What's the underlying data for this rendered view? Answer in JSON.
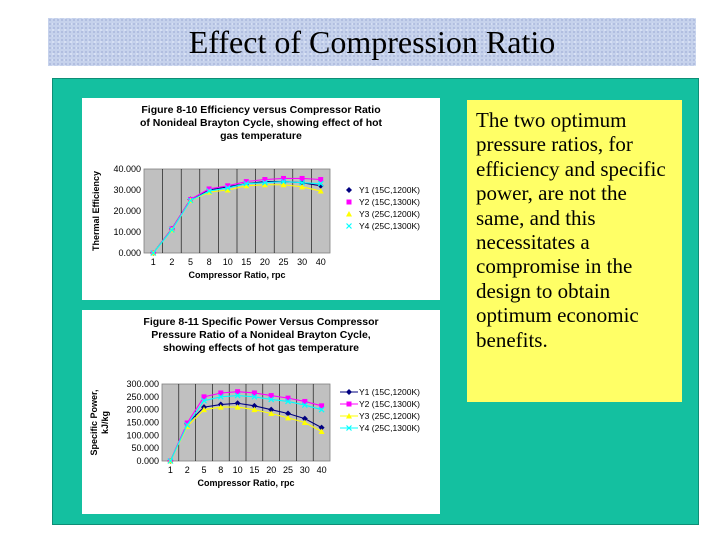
{
  "slide": {
    "title": "Effect of Compression Ratio",
    "note": "The two optimum pressure ratios, for efficiency and specific power, are not the same, and this necessitates a compromise in the design to obtain optimum economic benefits."
  },
  "colors": {
    "title_bar": "#c6d2ec",
    "panel": "#14c0a0",
    "note_box": "#ffff66",
    "plot_area": "#c0c0c0",
    "y1": "#000080",
    "y2": "#ff00ff",
    "y3": "#ffff00",
    "y4": "#00ffff"
  },
  "chart_data": [
    {
      "type": "line",
      "title_lines": [
        "Figure 8-10 Efficiency versus Compressor Ratio",
        "of Nonideal Brayton Cycle, showing effect of hot",
        "gas temperature"
      ],
      "xlabel": "Compressor Ratio, rpc",
      "ylabel": "Thermal Efficiency",
      "categories": [
        "1",
        "2",
        "5",
        "8",
        "10",
        "15",
        "20",
        "25",
        "30",
        "40"
      ],
      "yticks": [
        "40.000",
        "30.000",
        "20.000",
        "10.000",
        "0.000"
      ],
      "ylim": [
        0,
        40
      ],
      "grid": "vertical",
      "legend": "right",
      "series": [
        {
          "name": "Y1 (15C,1200K)",
          "values": [
            0,
            11.5,
            25.5,
            30,
            31.5,
            33,
            34,
            34,
            33.5,
            32
          ],
          "color": "#000080",
          "marker": "diamond"
        },
        {
          "name": "Y2 (15C,1300K)",
          "values": [
            0,
            11.5,
            25.5,
            30.5,
            32,
            34,
            35,
            35.5,
            35.5,
            35
          ],
          "color": "#ff00ff",
          "marker": "square"
        },
        {
          "name": "Y3 (25C,1200K)",
          "values": [
            0,
            11,
            25,
            29,
            30,
            32,
            32.5,
            32.5,
            31.5,
            29.5
          ],
          "color": "#ffff00",
          "marker": "triangle"
        },
        {
          "name": "Y4 (25C,1300K)",
          "values": [
            0,
            11,
            25,
            29.5,
            31,
            33,
            33.5,
            34,
            33.5,
            33
          ],
          "color": "#00ffff",
          "marker": "x"
        }
      ]
    },
    {
      "type": "line",
      "title_lines": [
        "Figure 8-11 Specific Power Versus Compressor",
        "Pressure Ratio of a Nonideal Brayton Cycle,",
        "showing effects of hot gas temperature"
      ],
      "xlabel": "Compressor Ratio, rpc",
      "ylabel": "Specific Power, kJ/kg",
      "categories": [
        "1",
        "2",
        "5",
        "8",
        "10",
        "15",
        "20",
        "25",
        "30",
        "40"
      ],
      "yticks": [
        "300.000",
        "250.000",
        "200.000",
        "150.000",
        "100.000",
        "50.000",
        "0.000"
      ],
      "ylim": [
        0,
        300
      ],
      "grid": "vertical",
      "legend": "right",
      "series": [
        {
          "name": "Y1 (15C,1200K)",
          "values": [
            0,
            145,
            210,
            220,
            225,
            215,
            200,
            185,
            165,
            130
          ],
          "color": "#000080",
          "marker": "diamond"
        },
        {
          "name": "Y2 (15C,1300K)",
          "values": [
            0,
            148,
            250,
            265,
            270,
            265,
            255,
            245,
            232,
            215
          ],
          "color": "#ff00ff",
          "marker": "square"
        },
        {
          "name": "Y3 (25C,1200K)",
          "values": [
            0,
            135,
            200,
            210,
            210,
            200,
            185,
            168,
            150,
            115
          ],
          "color": "#ffff00",
          "marker": "triangle"
        },
        {
          "name": "Y4 (25C,1300K)",
          "values": [
            0,
            140,
            235,
            250,
            255,
            250,
            240,
            232,
            218,
            200
          ],
          "color": "#00ffff",
          "marker": "x"
        }
      ]
    }
  ]
}
